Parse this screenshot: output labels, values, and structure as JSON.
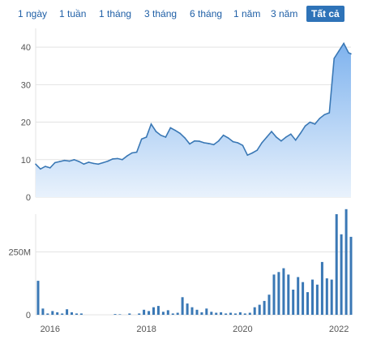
{
  "range_buttons": [
    {
      "label": "1 ngày",
      "active": false
    },
    {
      "label": "1 tuần",
      "active": false
    },
    {
      "label": "1 tháng",
      "active": false
    },
    {
      "label": "3 tháng",
      "active": false
    },
    {
      "label": "6 tháng",
      "active": false
    },
    {
      "label": "1 năm",
      "active": false
    },
    {
      "label": "3 năm",
      "active": false
    },
    {
      "label": "Tất cả",
      "active": true
    }
  ],
  "colors": {
    "line": "#3a78b5",
    "area_top": "#7fb3ee",
    "area_bottom": "#e9f2fc",
    "bar": "#3a78b5",
    "grid": "#e3e3e3"
  },
  "chart_data": [
    {
      "type": "area",
      "ylim": [
        0,
        45
      ],
      "yticks": [
        0,
        10,
        20,
        30,
        40
      ],
      "x": [
        2015.7,
        2015.8,
        2015.9,
        2016.0,
        2016.1,
        2016.2,
        2016.3,
        2016.4,
        2016.5,
        2016.6,
        2016.7,
        2016.8,
        2016.9,
        2017.0,
        2017.1,
        2017.2,
        2017.3,
        2017.4,
        2017.5,
        2017.6,
        2017.7,
        2017.8,
        2017.9,
        2018.0,
        2018.1,
        2018.2,
        2018.3,
        2018.4,
        2018.5,
        2018.6,
        2018.7,
        2018.8,
        2018.9,
        2019.0,
        2019.1,
        2019.2,
        2019.3,
        2019.4,
        2019.5,
        2019.6,
        2019.7,
        2019.8,
        2019.9,
        2020.0,
        2020.1,
        2020.2,
        2020.3,
        2020.4,
        2020.5,
        2020.6,
        2020.7,
        2020.8,
        2020.9,
        2021.0,
        2021.1,
        2021.2,
        2021.3,
        2021.4,
        2021.5,
        2021.6,
        2021.7,
        2021.8,
        2021.9,
        2022.0,
        2022.1,
        2022.2,
        2022.25
      ],
      "y": [
        8.8,
        7.5,
        8.2,
        7.8,
        9.2,
        9.5,
        9.8,
        9.6,
        10.0,
        9.5,
        8.8,
        9.3,
        9.0,
        8.8,
        9.2,
        9.6,
        10.2,
        10.3,
        10.0,
        11.0,
        11.8,
        12.0,
        15.5,
        16.0,
        19.5,
        17.5,
        16.5,
        16.0,
        18.5,
        17.8,
        17.0,
        15.8,
        14.2,
        15.0,
        14.9,
        14.5,
        14.3,
        14.0,
        15.0,
        16.5,
        15.8,
        14.8,
        14.5,
        13.8,
        11.2,
        11.8,
        12.5,
        14.5,
        16.0,
        17.5,
        16.0,
        15.0,
        16.0,
        16.8,
        15.2,
        17.0,
        19.0,
        20.0,
        19.5,
        21.0,
        22.0,
        22.5,
        37.0,
        39.0,
        41.0,
        38.5,
        38.2
      ]
    },
    {
      "type": "bar",
      "ylabel": "",
      "ylim": [
        0,
        400
      ],
      "yticks": [
        {
          "value": 0,
          "label": "0"
        },
        {
          "value": 250,
          "label": "250M"
        }
      ],
      "xticks": [
        2016,
        2018,
        2020,
        2022
      ],
      "x": [
        2015.75,
        2015.85,
        2015.95,
        2016.05,
        2016.15,
        2016.25,
        2016.35,
        2016.45,
        2016.55,
        2016.65,
        2017.35,
        2017.45,
        2017.65,
        2017.85,
        2017.95,
        2018.05,
        2018.15,
        2018.25,
        2018.35,
        2018.45,
        2018.55,
        2018.65,
        2018.75,
        2018.85,
        2018.95,
        2019.05,
        2019.15,
        2019.25,
        2019.35,
        2019.45,
        2019.55,
        2019.65,
        2019.75,
        2019.85,
        2019.95,
        2020.05,
        2020.15,
        2020.25,
        2020.35,
        2020.45,
        2020.55,
        2020.65,
        2020.75,
        2020.85,
        2020.95,
        2021.05,
        2021.15,
        2021.25,
        2021.35,
        2021.45,
        2021.55,
        2021.65,
        2021.75,
        2021.85,
        2021.95,
        2022.05,
        2022.15,
        2022.25
      ],
      "values": [
        135,
        25,
        5,
        15,
        10,
        5,
        22,
        10,
        5,
        5,
        3,
        2,
        5,
        5,
        20,
        15,
        30,
        35,
        12,
        18,
        5,
        8,
        70,
        45,
        30,
        20,
        10,
        25,
        12,
        8,
        10,
        5,
        8,
        5,
        10,
        5,
        8,
        30,
        40,
        55,
        80,
        160,
        170,
        185,
        160,
        100,
        150,
        130,
        90,
        140,
        120,
        210,
        145,
        140,
        400,
        320,
        420,
        310
      ]
    }
  ]
}
